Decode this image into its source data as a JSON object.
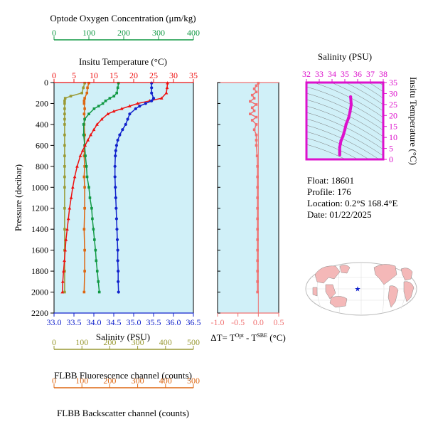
{
  "colors": {
    "oxygen": "#119944",
    "temperature": "#ee1111",
    "salinity": "#1122cc",
    "delta": "#f07070",
    "fluorescence": "#999933",
    "backscatter": "#dd6611",
    "ts": "#dd11cc",
    "panel_bg": "#d0f0f8",
    "land": "#f4b8b8",
    "ocean": "#ffffff"
  },
  "axes": {
    "oxygen": {
      "title": "Optode Oxygen Concentration (μm/kg)",
      "ticks": [
        "0",
        "100",
        "200",
        "300",
        "400"
      ]
    },
    "temperature": {
      "title": "Insitu Temperature (°C)",
      "ticks": [
        "0",
        "5",
        "10",
        "15",
        "20",
        "25",
        "30",
        "35"
      ]
    },
    "pressure": {
      "title": "Pressure (decibar)",
      "ticks": [
        "0",
        "200",
        "400",
        "600",
        "800",
        "1000",
        "1200",
        "1400",
        "1600",
        "1800",
        "2000",
        "2200"
      ]
    },
    "salinity": {
      "title": "Salinity (PSU)",
      "ticks": [
        "33.0",
        "33.5",
        "34.0",
        "34.5",
        "35.0",
        "35.5",
        "36.0",
        "36.5"
      ]
    },
    "delta": {
      "title_main": "ΔT= T",
      "title_sup1": "Opt",
      "title_mid": " - T",
      "title_sup2": "SBE",
      "title_end": " (°C)",
      "ticks": [
        "-1.0",
        "-0.5",
        "0.0",
        "0.5"
      ]
    },
    "fluorescence": {
      "title": "FLBB Fluorescence channel (counts)",
      "ticks": [
        "0",
        "100",
        "200",
        "300",
        "400",
        "500"
      ]
    },
    "backscatter": {
      "title": "FLBB Backscatter channel (counts)",
      "ticks": [
        "0",
        "100",
        "200",
        "300",
        "400",
        "500"
      ]
    },
    "ts_salinity": {
      "title": "Salinity (PSU)",
      "ticks": [
        "32",
        "33",
        "34",
        "35",
        "36",
        "37",
        "38"
      ]
    },
    "ts_temperature": {
      "title": "Insitu Temperature (°C)",
      "ticks": [
        "0",
        "5",
        "10",
        "15",
        "20",
        "25",
        "30",
        "35"
      ]
    }
  },
  "info": {
    "float": "Float:  18601",
    "profile": "Profile:  176",
    "location": "Location:  0.2°S  168.4°E",
    "date": "Date:  01/22/2025"
  },
  "map": {
    "marker_lon": 168.4,
    "marker_lat": -0.2,
    "marker_symbol": "★"
  },
  "chart_data": [
    {
      "type": "line",
      "name": "Insitu Temperature",
      "x_axis": "temperature",
      "xlim": [
        0,
        35
      ],
      "ylim": [
        2200,
        0
      ],
      "ylabel": "Pressure (decibar)",
      "pressure": [
        5,
        50,
        100,
        150,
        175,
        200,
        225,
        250,
        275,
        300,
        350,
        400,
        450,
        500,
        550,
        600,
        650,
        700,
        800,
        900,
        1000,
        1100,
        1200,
        1300,
        1400,
        1500,
        1600,
        1700,
        1800,
        1900,
        2000
      ],
      "values": [
        28.5,
        28.4,
        28.2,
        27.0,
        24.0,
        21.0,
        19.0,
        17.0,
        15.0,
        13.5,
        12.0,
        10.8,
        10.0,
        9.2,
        8.5,
        7.8,
        7.2,
        6.6,
        5.8,
        5.2,
        4.7,
        4.3,
        3.9,
        3.6,
        3.3,
        3.0,
        2.8,
        2.6,
        2.4,
        2.2,
        2.1
      ]
    },
    {
      "type": "line",
      "name": "Salinity",
      "x_axis": "salinity",
      "xlim": [
        33.0,
        36.5
      ],
      "ylim": [
        2200,
        0
      ],
      "pressure": [
        5,
        50,
        100,
        150,
        175,
        200,
        225,
        250,
        300,
        350,
        400,
        450,
        500,
        550,
        600,
        650,
        700,
        800,
        900,
        1000,
        1100,
        1200,
        1300,
        1400,
        1500,
        1600,
        1700,
        1800,
        1900,
        2000
      ],
      "values": [
        35.45,
        35.45,
        35.45,
        35.5,
        35.45,
        35.3,
        35.15,
        35.05,
        34.9,
        34.85,
        34.8,
        34.72,
        34.65,
        34.6,
        34.57,
        34.55,
        34.54,
        34.53,
        34.53,
        34.54,
        34.55,
        34.56,
        34.57,
        34.58,
        34.59,
        34.6,
        34.6,
        34.61,
        34.61,
        34.62
      ]
    },
    {
      "type": "line",
      "name": "Optode Oxygen Concentration",
      "x_axis": "oxygen",
      "xlim": [
        0,
        400
      ],
      "ylim": [
        2200,
        0
      ],
      "pressure": [
        5,
        50,
        100,
        130,
        150,
        175,
        200,
        225,
        250,
        300,
        350,
        400,
        500,
        600,
        700,
        800,
        900,
        1000,
        1100,
        1200,
        1300,
        1400,
        1500,
        1600,
        1700,
        1800,
        1900,
        2000
      ],
      "values": [
        185,
        183,
        180,
        172,
        160,
        148,
        140,
        128,
        115,
        100,
        88,
        85,
        85,
        88,
        90,
        93,
        95,
        100,
        103,
        108,
        110,
        113,
        116,
        119,
        121,
        124,
        127,
        130
      ]
    },
    {
      "type": "line",
      "name": "FLBB Fluorescence channel",
      "x_axis": "fluorescence",
      "xlim": [
        0,
        500
      ],
      "ylim": [
        2200,
        0
      ],
      "pressure": [
        5,
        50,
        100,
        130,
        150,
        175,
        200,
        250,
        300,
        350,
        400,
        500,
        600,
        700,
        800,
        900,
        1000,
        1200,
        1400,
        1600,
        1800,
        2000
      ],
      "values": [
        110,
        105,
        100,
        60,
        40,
        38,
        38,
        38,
        38,
        38,
        38,
        38,
        38,
        38,
        38,
        38,
        38,
        38,
        38,
        38,
        38,
        38
      ]
    },
    {
      "type": "line",
      "name": "FLBB Backscatter channel",
      "x_axis": "backscatter",
      "xlim": [
        0,
        500
      ],
      "ylim": [
        2200,
        0
      ],
      "pressure": [
        5,
        50,
        100,
        150,
        175,
        200,
        250,
        300,
        350,
        400,
        500,
        600,
        700,
        800,
        900,
        1000,
        1200,
        1400,
        1600,
        1800,
        2000
      ],
      "values": [
        125,
        120,
        118,
        110,
        108,
        108,
        110,
        108,
        110,
        108,
        110,
        110,
        108,
        110,
        108,
        110,
        110,
        108,
        110,
        110,
        108
      ]
    },
    {
      "type": "scatter",
      "name": "Delta T",
      "x_axis": "delta",
      "xlim": [
        -1.0,
        0.5
      ],
      "ylim": [
        2200,
        0
      ],
      "pressure": [
        5,
        30,
        60,
        90,
        120,
        150,
        180,
        210,
        240,
        270,
        300,
        330,
        360,
        400,
        450,
        500,
        550,
        600,
        700,
        800,
        900,
        1000,
        1100,
        1200,
        1300,
        1400,
        1500,
        1600,
        1700,
        1800,
        1900,
        2000
      ],
      "values": [
        0.0,
        -0.05,
        -0.1,
        -0.05,
        -0.15,
        -0.1,
        -0.2,
        -0.05,
        -0.15,
        -0.1,
        -0.2,
        -0.05,
        -0.15,
        -0.05,
        -0.1,
        -0.05,
        -0.05,
        -0.05,
        -0.03,
        -0.02,
        -0.02,
        -0.02,
        -0.02,
        -0.02,
        -0.02,
        -0.02,
        -0.02,
        -0.02,
        -0.02,
        -0.02,
        -0.02,
        -0.02
      ]
    },
    {
      "type": "line",
      "name": "T-S diagram",
      "xlim": [
        32,
        38
      ],
      "ylim": [
        0,
        35
      ],
      "salinity": [
        34.6,
        34.6,
        34.6,
        34.6,
        34.65,
        34.7,
        34.85,
        35.0,
        35.1,
        35.3,
        35.4,
        35.5,
        35.45
      ],
      "temperature": [
        2.1,
        3.0,
        4.0,
        5.5,
        7.0,
        8.5,
        10.5,
        13.5,
        16.0,
        19.0,
        21.5,
        25.0,
        28.5
      ]
    }
  ]
}
